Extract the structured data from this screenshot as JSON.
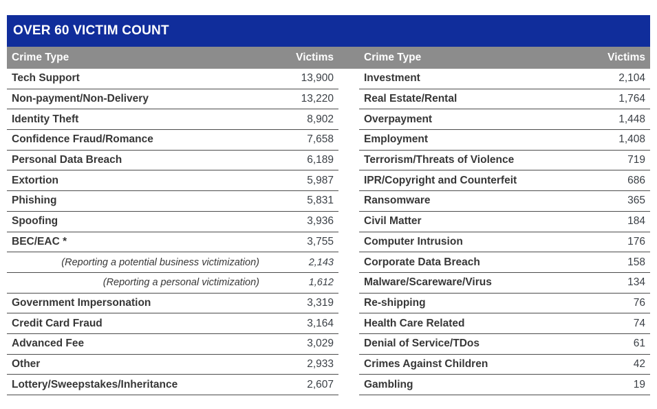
{
  "table": {
    "title": "OVER 60 VICTIM COUNT",
    "colors": {
      "title_bar": "#102D9B",
      "header_bar": "#8C8C8C",
      "header_text": "#FFFFFF",
      "label_text": "#373737",
      "value_text": "#3A3F45",
      "row_line": "#4A4A4A",
      "page_background": "#FFFFFF"
    },
    "headers": {
      "left_crime_type": "Crime Type",
      "left_victims": "Victims",
      "right_crime_type": "Crime Type",
      "right_victims": "Victims"
    },
    "left_rows": [
      {
        "label": "Tech Support",
        "value": "13,900"
      },
      {
        "label": "Non-payment/Non-Delivery",
        "value": "13,220"
      },
      {
        "label": "Identity Theft",
        "value": "8,902"
      },
      {
        "label": "Confidence Fraud/Romance",
        "value": "7,658"
      },
      {
        "label": "Personal Data Breach",
        "value": "6,189"
      },
      {
        "label": "Extortion",
        "value": "5,987"
      },
      {
        "label": "Phishing",
        "value": "5,831"
      },
      {
        "label": "Spoofing",
        "value": "3,936"
      },
      {
        "label": "BEC/EAC *",
        "value": "3,755"
      },
      {
        "label": "(Reporting a potential business victimization)",
        "value": "2,143",
        "sub": true
      },
      {
        "label": "(Reporting a personal victimization)",
        "value": "1,612",
        "sub": true
      },
      {
        "label": "Government Impersonation",
        "value": "3,319"
      },
      {
        "label": "Credit Card Fraud",
        "value": "3,164"
      },
      {
        "label": "Advanced Fee",
        "value": "3,029"
      },
      {
        "label": "Other",
        "value": "2,933"
      },
      {
        "label": "Lottery/Sweepstakes/Inheritance",
        "value": "2,607"
      }
    ],
    "right_rows": [
      {
        "label": "Investment",
        "value": "2,104"
      },
      {
        "label": "Real Estate/Rental",
        "value": "1,764"
      },
      {
        "label": "Overpayment",
        "value": "1,448"
      },
      {
        "label": "Employment",
        "value": "1,408"
      },
      {
        "label": "Terrorism/Threats of Violence",
        "value": "719"
      },
      {
        "label": "IPR/Copyright and Counterfeit",
        "value": "686"
      },
      {
        "label": "Ransomware",
        "value": "365"
      },
      {
        "label": "Civil Matter",
        "value": "184"
      },
      {
        "label": "Computer Intrusion",
        "value": "176"
      },
      {
        "label": "Corporate Data Breach",
        "value": "158"
      },
      {
        "label": "Malware/Scareware/Virus",
        "value": "134"
      },
      {
        "label": "Re-shipping",
        "value": "76"
      },
      {
        "label": "Health Care Related",
        "value": "74"
      },
      {
        "label": "Denial of Service/TDos",
        "value": "61"
      },
      {
        "label": "Crimes Against Children",
        "value": "42"
      },
      {
        "label": "Gambling",
        "value": "19"
      }
    ]
  }
}
